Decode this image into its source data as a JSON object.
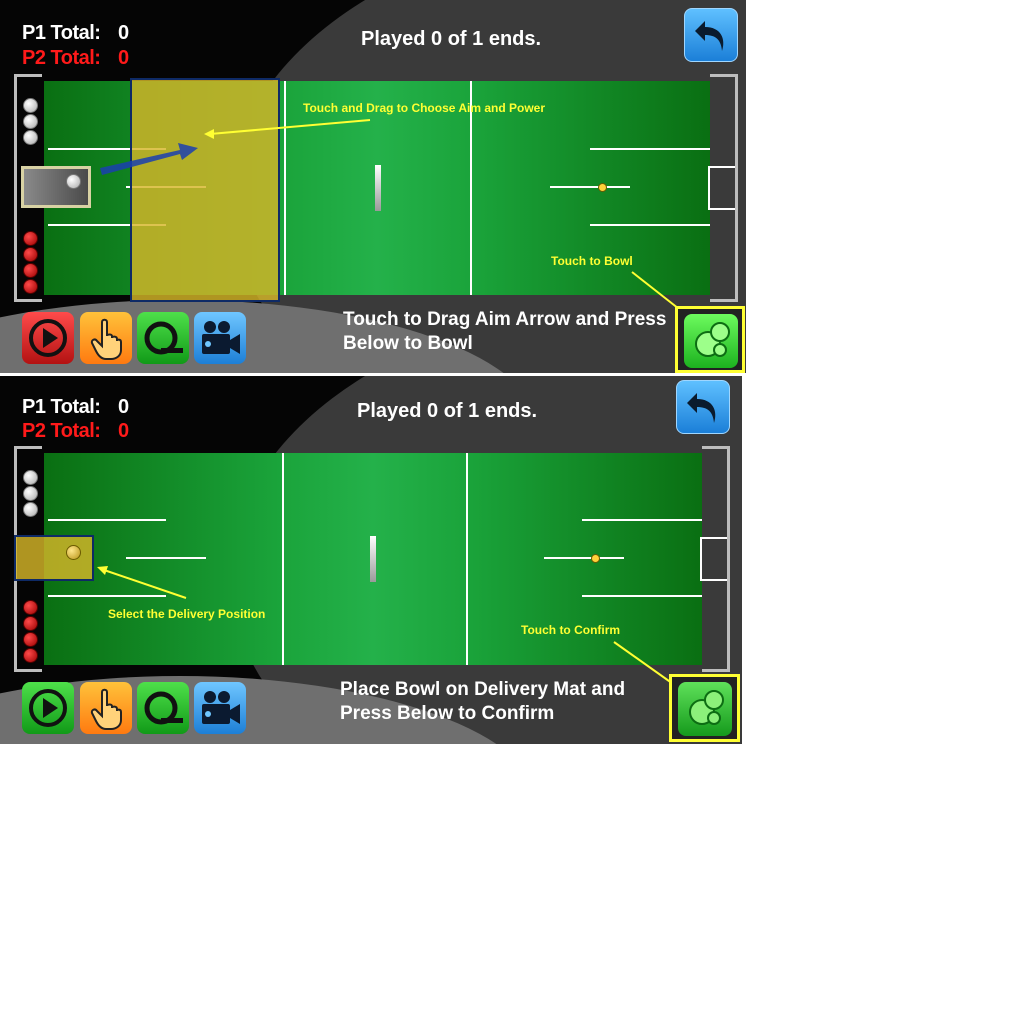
{
  "screens": [
    {
      "score": {
        "p1_label": "P1 Total:",
        "p1_value": "0",
        "p2_label": "P2 Total:",
        "p2_value": "0"
      },
      "played": "Played 0 of 1 ends.",
      "instruction_line1": "Touch to Drag Aim Arrow and Press",
      "instruction_line2": "Below to Bowl",
      "annotations": {
        "aim": "Touch and Drag to Choose Aim and Power",
        "action": "Touch to Bowl"
      },
      "play_button_color": "#d81b1b"
    },
    {
      "score": {
        "p1_label": "P1 Total:",
        "p1_value": "0",
        "p2_label": "P2 Total:",
        "p2_value": "0"
      },
      "played": "Played 0 of 1 ends.",
      "instruction_line1": "Place Bowl on Delivery Mat and",
      "instruction_line2": "Press Below to Confirm",
      "annotations": {
        "position": "Select the Delivery Position",
        "action": "Touch to Confirm"
      },
      "play_button_color": "#1fb52a"
    }
  ],
  "icons": {
    "back": "undo-arrow-icon",
    "play": "play-icon",
    "touch": "hand-pointer-icon",
    "measure": "tape-measure-icon",
    "camera": "video-camera-icon",
    "bowl": "bowls-icon"
  },
  "colors": {
    "p2": "#ff1a1a",
    "annotation": "#ffff33",
    "green": "#1aa33a"
  }
}
